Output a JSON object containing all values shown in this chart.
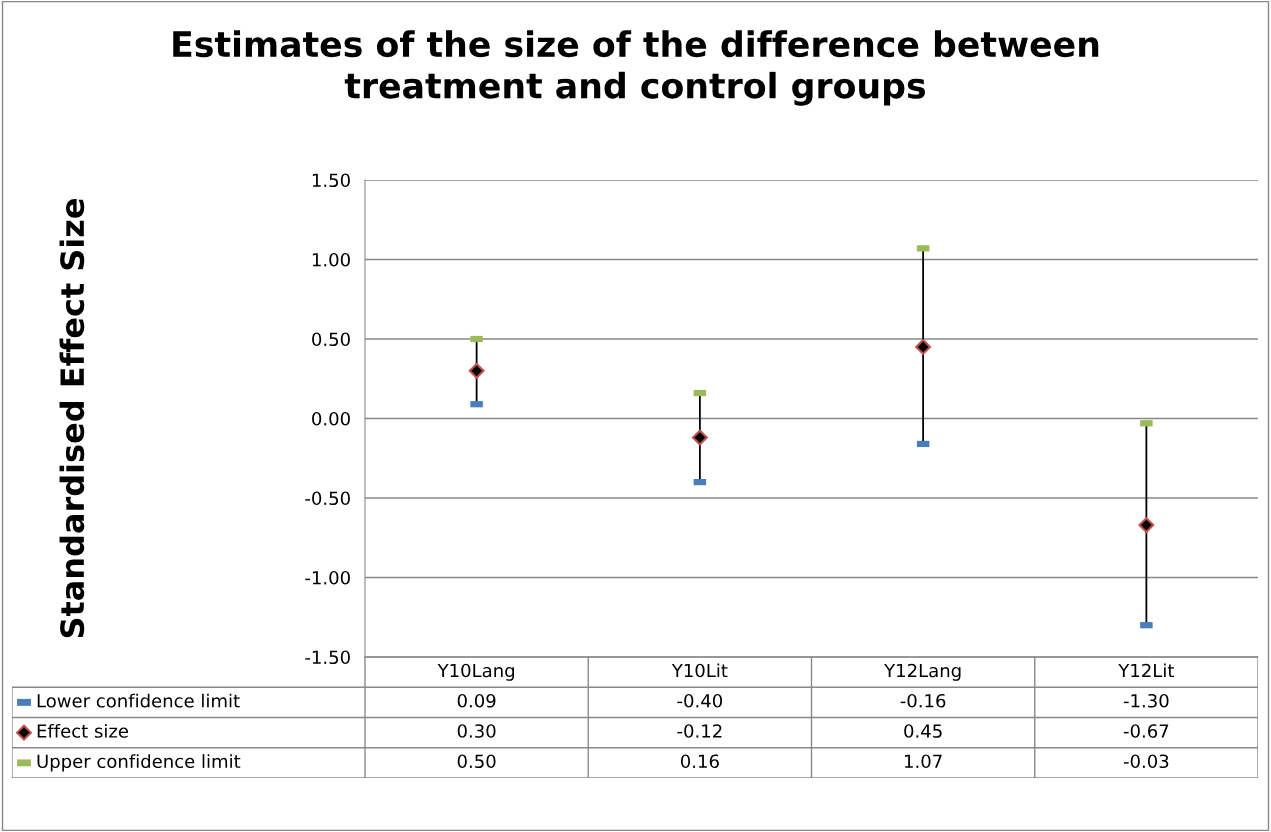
{
  "chart_data": {
    "type": "scatter",
    "title": "Estimates of the size of the difference between\ntreatment and control groups",
    "annotations": [
      "Standardised Effect Size"
    ],
    "categories": [
      "Y10Lang",
      "Y10Lit",
      "Y12Lang",
      "Y12Lit"
    ],
    "series": [
      {
        "name": "Lower confidence limit",
        "color": "#4a7ebb",
        "values": [
          0.09,
          -0.4,
          -0.16,
          -1.3
        ],
        "value_labels": [
          "0.09",
          "-0.40",
          "-0.16",
          "-1.30"
        ]
      },
      {
        "name": "Effect size",
        "color": "#c0504d",
        "marker": "diamond",
        "values": [
          0.3,
          -0.12,
          0.45,
          -0.67
        ],
        "value_labels": [
          "0.30",
          "-0.12",
          "0.45",
          "-0.67"
        ]
      },
      {
        "name": "Upper confidence limit",
        "color": "#9bbb59",
        "values": [
          0.5,
          0.16,
          1.07,
          -0.03
        ],
        "value_labels": [
          "0.50",
          "0.16",
          "1.07",
          "-0.03"
        ]
      }
    ],
    "ylim": [
      -1.5,
      1.5
    ],
    "yticks": [
      {
        "value": -1.5,
        "label": "-1.50"
      },
      {
        "value": -1.0,
        "label": "-1.00"
      },
      {
        "value": -0.5,
        "label": "-0.50"
      },
      {
        "value": 0,
        "label": "0.00"
      },
      {
        "value": 0.5,
        "label": "0.50"
      },
      {
        "value": 1.0,
        "label": "1.00"
      },
      {
        "value": 1.5,
        "label": "1.50"
      }
    ],
    "grid": "y",
    "legend": "bottom left"
  }
}
